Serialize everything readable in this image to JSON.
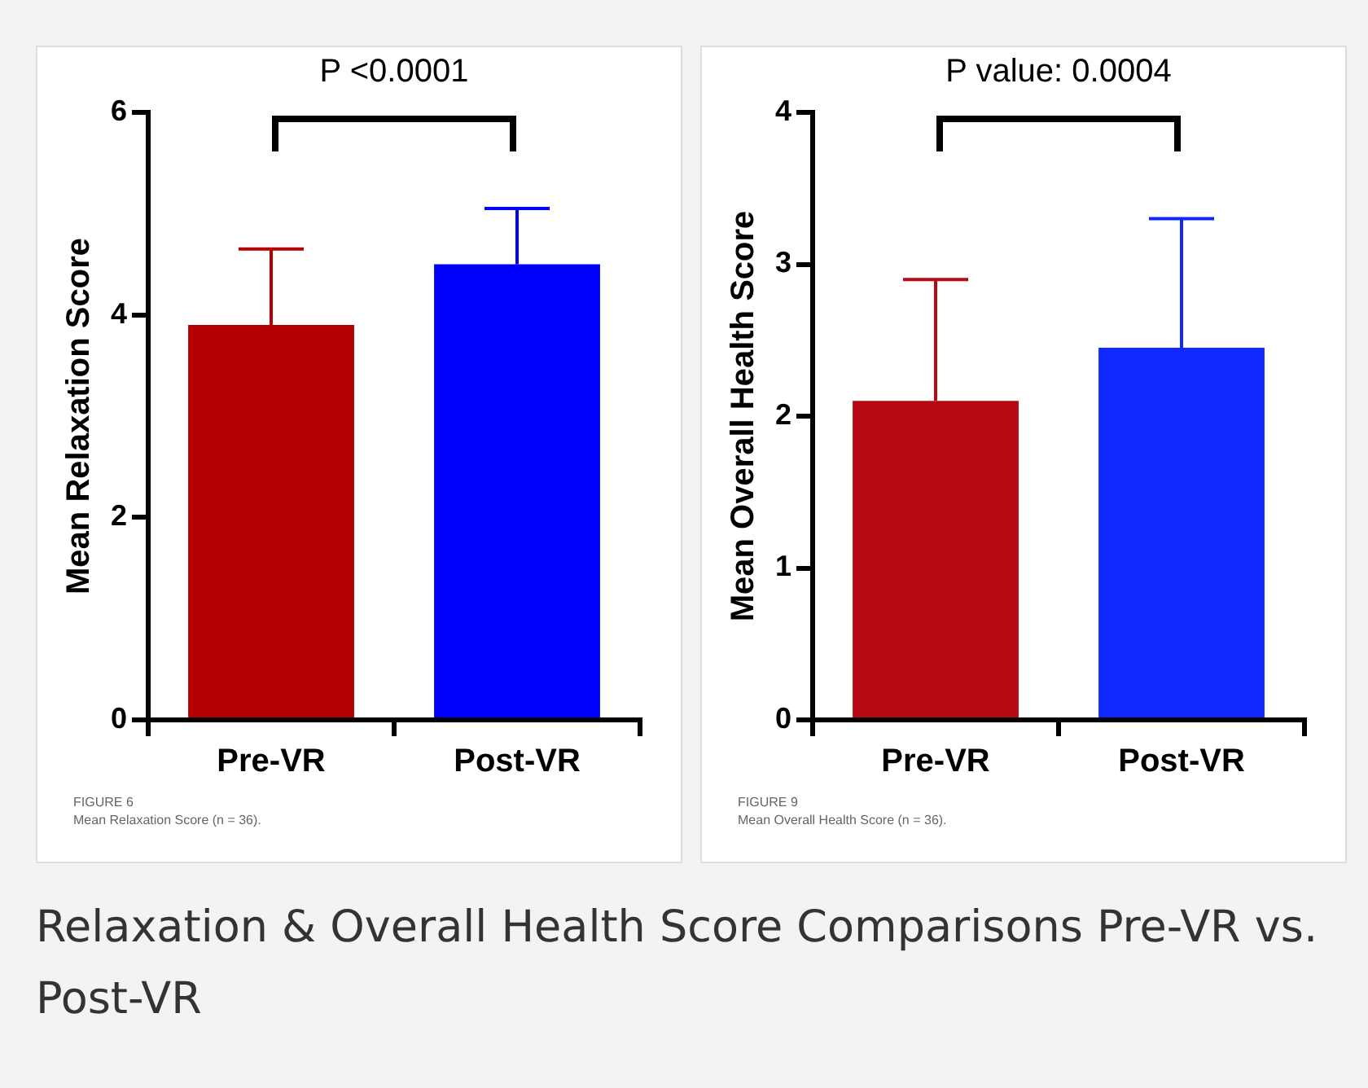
{
  "chart_data": [
    {
      "type": "bar",
      "ylabel": "Mean Relaxation Score",
      "categories": [
        "Pre-VR",
        "Post-VR"
      ],
      "values": [
        3.9,
        4.5
      ],
      "colors": [
        "#b40000",
        "#0000ff"
      ],
      "errors": [
        [
          3.9,
          4.65
        ],
        [
          4.5,
          5.05
        ]
      ],
      "ylim": [
        0,
        6
      ],
      "yticks": [
        0,
        2,
        4,
        6
      ],
      "grid": false,
      "legend": false,
      "annotations": [
        "P <0.0001",
        "FIGURE 6",
        "Mean Relaxation Score (n = 36)."
      ]
    },
    {
      "type": "bar",
      "ylabel": "Mean Overall Health Score",
      "categories": [
        "Pre-VR",
        "Post-VR"
      ],
      "values": [
        2.1,
        2.45
      ],
      "colors": [
        "#b80a14",
        "#1028ff"
      ],
      "errors": [
        [
          2.1,
          2.9
        ],
        [
          2.45,
          3.3
        ]
      ],
      "ylim": [
        0,
        4
      ],
      "yticks": [
        0,
        1,
        2,
        3,
        4
      ],
      "grid": false,
      "legend": false,
      "annotations": [
        "P value: 0.0004",
        "FIGURE 9",
        "Mean Overall Health Score (n = 36).",
        "Relaxation & Overall Health Score Comparisons Pre-VR vs. Post-VR"
      ]
    }
  ]
}
